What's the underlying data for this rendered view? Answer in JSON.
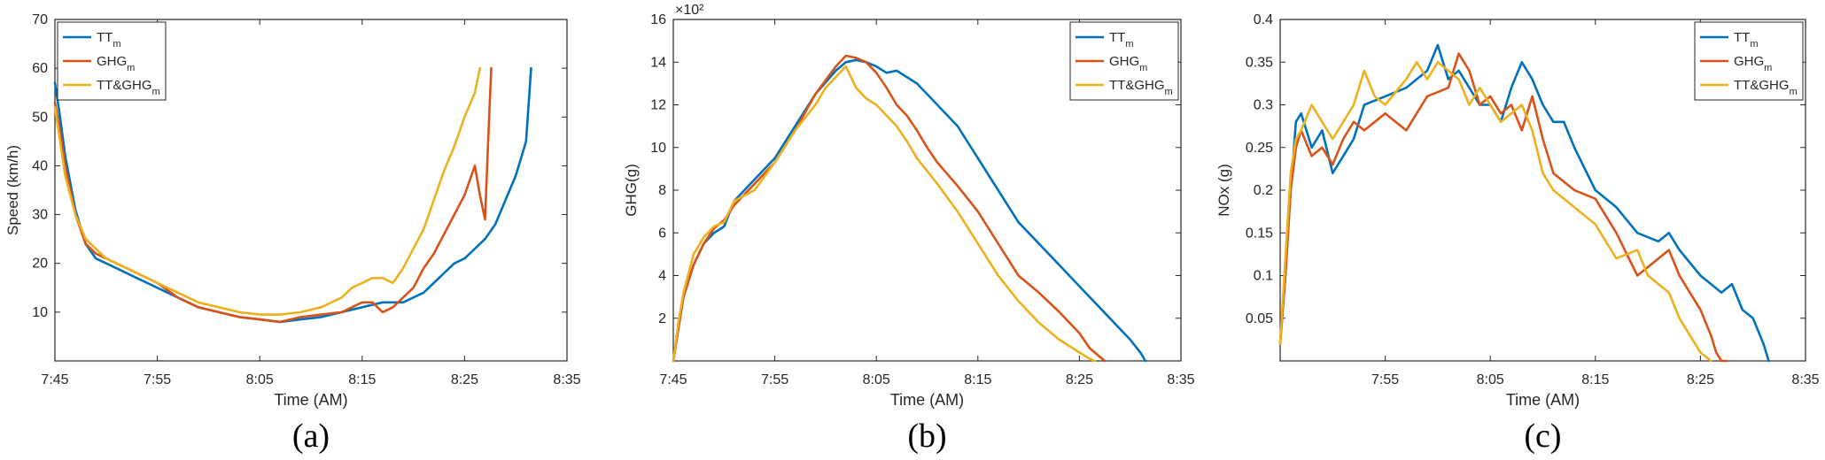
{
  "colors": {
    "tt": "#0072BD",
    "ghg": "#D95319",
    "both": "#EDB120",
    "axis": "#262626"
  },
  "chart_data": [
    {
      "type": "line",
      "caption": "(a)",
      "xlabel": "Time (AM)",
      "ylabel": "Speed (km/h)",
      "exponent_label": "",
      "xticks": [
        {
          "v": 0,
          "label": "7:45"
        },
        {
          "v": 10,
          "label": "7:55"
        },
        {
          "v": 20,
          "label": "8:05"
        },
        {
          "v": 30,
          "label": "8:15"
        },
        {
          "v": 40,
          "label": "8:25"
        },
        {
          "v": 50,
          "label": "8:35"
        }
      ],
      "yticks": [
        {
          "v": 10,
          "label": "10"
        },
        {
          "v": 20,
          "label": "20"
        },
        {
          "v": 30,
          "label": "30"
        },
        {
          "v": 40,
          "label": "40"
        },
        {
          "v": 50,
          "label": "50"
        },
        {
          "v": 60,
          "label": "60"
        },
        {
          "v": 70,
          "label": "70"
        }
      ],
      "xlim": [
        0,
        50
      ],
      "ylim": [
        0,
        70
      ],
      "legend_position": "top-left",
      "series": [
        {
          "name": "TT",
          "sub": "m",
          "color_key": "tt",
          "x": [
            0,
            0.5,
            1,
            2,
            3,
            4,
            5,
            6,
            8,
            10,
            12,
            14,
            16,
            18,
            20,
            22,
            24,
            26,
            28,
            30,
            32,
            34,
            35,
            36,
            37,
            38,
            39,
            40,
            41,
            42,
            43,
            44,
            45,
            46,
            46.5
          ],
          "y": [
            57,
            50,
            42,
            31,
            24,
            21,
            20,
            19,
            17,
            15,
            13,
            11,
            10,
            9,
            8.5,
            8,
            8.5,
            9,
            10,
            11,
            12,
            12,
            13,
            14,
            16,
            18,
            20,
            21,
            23,
            25,
            28,
            33,
            38,
            45,
            60
          ]
        },
        {
          "name": "GHG",
          "sub": "m",
          "color_key": "ghg",
          "x": [
            0,
            0.5,
            1,
            2,
            3,
            4,
            5,
            6,
            8,
            10,
            12,
            14,
            16,
            18,
            20,
            22,
            24,
            26,
            28,
            30,
            31,
            32,
            33,
            34,
            35,
            36,
            37,
            38,
            39,
            40,
            41,
            41.5,
            42,
            42.3,
            42.6
          ],
          "y": [
            53,
            47,
            40,
            30,
            24,
            22,
            21,
            20,
            18,
            16,
            13,
            11,
            10,
            9,
            8.5,
            8,
            9,
            9.5,
            10,
            12,
            12,
            10,
            11,
            13,
            15,
            19,
            22,
            26,
            30,
            34,
            40,
            34,
            29,
            45,
            60
          ]
        },
        {
          "name": "TT&GHG",
          "sub": "m",
          "color_key": "both",
          "x": [
            0,
            0.5,
            1,
            2,
            3,
            4,
            5,
            6,
            8,
            10,
            12,
            14,
            16,
            18,
            20,
            22,
            24,
            26,
            28,
            29,
            30,
            31,
            32,
            33,
            34,
            35,
            36,
            37,
            38,
            39,
            40,
            41,
            41.5
          ],
          "y": [
            52,
            45,
            38,
            30,
            25,
            23,
            21,
            20,
            18,
            16,
            14,
            12,
            11,
            10,
            9.5,
            9.5,
            10,
            11,
            13,
            15,
            16,
            17,
            17,
            16,
            19,
            23,
            27,
            33,
            39,
            44,
            50,
            55,
            60
          ]
        }
      ]
    },
    {
      "type": "line",
      "caption": "(b)",
      "xlabel": "Time (AM)",
      "ylabel": "GHG(g)",
      "exponent_label": "×10²",
      "xticks": [
        {
          "v": 0,
          "label": "7:45"
        },
        {
          "v": 10,
          "label": "7:55"
        },
        {
          "v": 20,
          "label": "8:05"
        },
        {
          "v": 30,
          "label": "8:15"
        },
        {
          "v": 40,
          "label": "8:25"
        },
        {
          "v": 50,
          "label": "8:35"
        }
      ],
      "yticks": [
        {
          "v": 2,
          "label": "2"
        },
        {
          "v": 4,
          "label": "4"
        },
        {
          "v": 6,
          "label": "6"
        },
        {
          "v": 8,
          "label": "8"
        },
        {
          "v": 10,
          "label": "10"
        },
        {
          "v": 12,
          "label": "12"
        },
        {
          "v": 14,
          "label": "14"
        },
        {
          "v": 16,
          "label": "16"
        }
      ],
      "xlim": [
        0,
        50
      ],
      "ylim": [
        0,
        16
      ],
      "legend_position": "top-right",
      "series": [
        {
          "name": "TT",
          "sub": "m",
          "color_key": "tt",
          "x": [
            0,
            0.5,
            1,
            2,
            3,
            4,
            5,
            6,
            8,
            10,
            12,
            14,
            16,
            17,
            18,
            19,
            20,
            21,
            22,
            23,
            24,
            25,
            26,
            28,
            30,
            32,
            34,
            36,
            38,
            40,
            42,
            44,
            45,
            46,
            46.5
          ],
          "y": [
            0,
            1.5,
            3,
            4.5,
            5.5,
            6,
            6.3,
            7.5,
            8.5,
            9.5,
            11,
            12.5,
            13.6,
            14,
            14.1,
            14,
            13.8,
            13.5,
            13.6,
            13.3,
            13.0,
            12.5,
            12.0,
            11.0,
            9.5,
            8.0,
            6.5,
            5.5,
            4.5,
            3.5,
            2.5,
            1.5,
            1.0,
            0.4,
            0
          ]
        },
        {
          "name": "GHG",
          "sub": "m",
          "color_key": "ghg",
          "x": [
            0,
            0.5,
            1,
            2,
            3,
            4,
            5,
            6,
            8,
            10,
            12,
            14,
            16,
            17,
            18,
            19,
            20,
            21,
            22,
            23,
            24,
            25,
            26,
            28,
            30,
            32,
            34,
            36,
            38,
            40,
            41,
            42,
            42.5
          ],
          "y": [
            0,
            1.5,
            3,
            4.5,
            5.5,
            6.2,
            6.6,
            7.3,
            8.3,
            9.3,
            10.8,
            12.5,
            13.8,
            14.3,
            14.2,
            14.0,
            13.5,
            12.8,
            12.0,
            11.5,
            10.8,
            10.0,
            9.3,
            8.2,
            7.0,
            5.5,
            4.0,
            3.2,
            2.3,
            1.3,
            0.6,
            0.2,
            0
          ]
        },
        {
          "name": "TT&GHG",
          "sub": "m",
          "color_key": "both",
          "x": [
            0,
            0.5,
            1,
            2,
            3,
            4,
            5,
            6,
            8,
            10,
            12,
            14,
            15,
            16,
            17,
            18,
            19,
            20,
            21,
            22,
            23,
            24,
            26,
            28,
            30,
            32,
            34,
            36,
            38,
            40,
            41,
            41.5
          ],
          "y": [
            0,
            1.8,
            3.2,
            5.0,
            5.8,
            6.3,
            6.5,
            7.5,
            8.0,
            9.3,
            10.8,
            12.0,
            12.8,
            13.3,
            13.8,
            12.8,
            12.3,
            12.0,
            11.5,
            11.0,
            10.3,
            9.5,
            8.3,
            7.0,
            5.5,
            4.0,
            2.8,
            1.8,
            1.0,
            0.4,
            0.1,
            0
          ]
        }
      ]
    },
    {
      "type": "line",
      "caption": "(c)",
      "xlabel": "Time (AM)",
      "ylabel": "NOx (g)",
      "exponent_label": "",
      "xticks": [
        {
          "v": 10,
          "label": "7:55"
        },
        {
          "v": 20,
          "label": "8:05"
        },
        {
          "v": 30,
          "label": "8:15"
        },
        {
          "v": 40,
          "label": "8:25"
        },
        {
          "v": 50,
          "label": "8:35"
        }
      ],
      "yticks": [
        {
          "v": 0.05,
          "label": "0.05"
        },
        {
          "v": 0.1,
          "label": "0.1"
        },
        {
          "v": 0.15,
          "label": "0.15"
        },
        {
          "v": 0.2,
          "label": "0.2"
        },
        {
          "v": 0.25,
          "label": "0.25"
        },
        {
          "v": 0.3,
          "label": "0.3"
        },
        {
          "v": 0.35,
          "label": "0.35"
        },
        {
          "v": 0.4,
          "label": "0.4"
        }
      ],
      "xlim": [
        0,
        50
      ],
      "ylim": [
        0,
        0.4
      ],
      "legend_position": "top-right",
      "series": [
        {
          "name": "TT",
          "sub": "m",
          "color_key": "tt",
          "x": [
            0,
            0.5,
            1,
            1.5,
            2,
            3,
            4,
            5,
            6,
            7,
            8,
            10,
            12,
            14,
            15,
            16,
            17,
            18,
            19,
            20,
            21,
            22,
            23,
            24,
            25,
            26,
            27,
            28,
            30,
            32,
            34,
            36,
            37,
            38,
            40,
            42,
            43,
            44,
            45,
            46,
            46.5
          ],
          "y": [
            0.02,
            0.1,
            0.2,
            0.28,
            0.29,
            0.25,
            0.27,
            0.22,
            0.24,
            0.26,
            0.3,
            0.31,
            0.32,
            0.34,
            0.37,
            0.33,
            0.34,
            0.32,
            0.3,
            0.3,
            0.28,
            0.32,
            0.35,
            0.33,
            0.3,
            0.28,
            0.28,
            0.25,
            0.2,
            0.18,
            0.15,
            0.14,
            0.15,
            0.13,
            0.1,
            0.08,
            0.09,
            0.06,
            0.05,
            0.02,
            0.0
          ]
        },
        {
          "name": "GHG",
          "sub": "m",
          "color_key": "ghg",
          "x": [
            0,
            0.5,
            1,
            1.5,
            2,
            3,
            4,
            5,
            6,
            7,
            8,
            10,
            12,
            14,
            16,
            17,
            18,
            19,
            20,
            21,
            22,
            23,
            24,
            25,
            26,
            28,
            30,
            32,
            34,
            36,
            37,
            38,
            39,
            40,
            41,
            41.5,
            42,
            42.5
          ],
          "y": [
            0.02,
            0.1,
            0.2,
            0.25,
            0.27,
            0.24,
            0.25,
            0.23,
            0.26,
            0.28,
            0.27,
            0.29,
            0.27,
            0.31,
            0.32,
            0.36,
            0.34,
            0.3,
            0.31,
            0.29,
            0.3,
            0.27,
            0.31,
            0.26,
            0.22,
            0.2,
            0.19,
            0.15,
            0.1,
            0.12,
            0.13,
            0.1,
            0.08,
            0.06,
            0.03,
            0.01,
            0.0,
            0.0
          ]
        },
        {
          "name": "TT&GHG",
          "sub": "m",
          "color_key": "both",
          "x": [
            0,
            0.5,
            1,
            1.5,
            2,
            3,
            4,
            5,
            6,
            7,
            8,
            9,
            10,
            12,
            13,
            14,
            15,
            16,
            17,
            18,
            19,
            20,
            21,
            22,
            23,
            24,
            25,
            26,
            28,
            30,
            32,
            34,
            35,
            36,
            37,
            38,
            39,
            40,
            41
          ],
          "y": [
            0.02,
            0.12,
            0.22,
            0.26,
            0.27,
            0.3,
            0.28,
            0.26,
            0.28,
            0.3,
            0.34,
            0.31,
            0.3,
            0.33,
            0.35,
            0.33,
            0.35,
            0.34,
            0.33,
            0.3,
            0.32,
            0.3,
            0.28,
            0.29,
            0.3,
            0.27,
            0.22,
            0.2,
            0.18,
            0.16,
            0.12,
            0.13,
            0.1,
            0.09,
            0.08,
            0.05,
            0.03,
            0.01,
            0.0
          ]
        }
      ]
    }
  ]
}
